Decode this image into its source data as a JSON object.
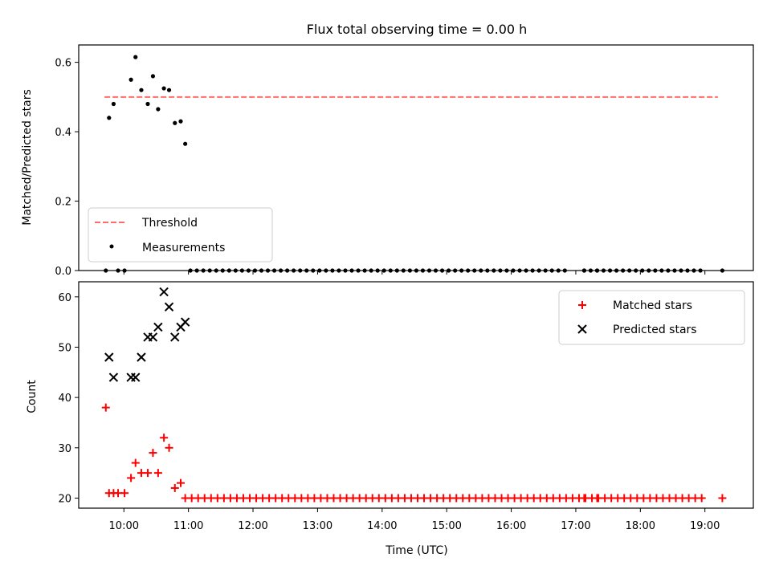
{
  "chart_data": [
    {
      "type": "scatter",
      "title": "Flux total observing time = 0.00 h",
      "xlabel": "",
      "ylabel": "Matched/Predicted stars",
      "ylim": [
        0.0,
        0.65
      ],
      "yticks": [
        0.0,
        0.2,
        0.4,
        0.6
      ],
      "yticklabels": [
        "0.0",
        "0.2",
        "0.4",
        "0.6"
      ],
      "xlim": [
        9.3,
        19.75
      ],
      "legend": "bottom-left",
      "grid": false,
      "threshold": {
        "name": "Threshold",
        "value": 0.5,
        "x": [
          9.7,
          19.2
        ],
        "color": "#ff6b6b",
        "style": "dashed"
      },
      "series": [
        {
          "name": "Measurements",
          "color": "#000000",
          "marker": "dot",
          "x": [
            9.77,
            9.84,
            9.91,
            10.01,
            10.11,
            10.18,
            10.27,
            10.37,
            10.45,
            10.53,
            10.62,
            10.7,
            10.79,
            10.88,
            10.95
          ],
          "y": [
            0.44,
            0.48,
            0.0,
            0.0,
            0.55,
            0.615,
            0.52,
            0.48,
            0.56,
            0.465,
            0.525,
            0.52,
            0.425,
            0.43,
            0.365
          ]
        }
      ],
      "zero_points": {
        "start": 11.03,
        "end": 19.02,
        "step": 0.1,
        "gaps": [
          16.93,
          17.03
        ],
        "extra": [
          9.72,
          17.13,
          17.33,
          19.27
        ]
      }
    },
    {
      "type": "scatter",
      "title": "",
      "xlabel": "Time (UTC)",
      "ylabel": "Count",
      "ylim": [
        18,
        63
      ],
      "yticks": [
        20,
        30,
        40,
        50,
        60
      ],
      "yticklabels": [
        "20",
        "30",
        "40",
        "50",
        "60"
      ],
      "xlim": [
        9.3,
        19.75
      ],
      "xticks": [
        10,
        11,
        12,
        13,
        14,
        15,
        16,
        17,
        18,
        19
      ],
      "xticklabels": [
        "10:00",
        "11:00",
        "12:00",
        "13:00",
        "14:00",
        "15:00",
        "16:00",
        "17:00",
        "18:00",
        "19:00"
      ],
      "legend": "top-right",
      "grid": false,
      "series": [
        {
          "name": "Matched stars",
          "color": "#ff0000",
          "marker": "plus",
          "x": [
            9.72,
            9.77,
            9.84,
            9.91,
            10.01,
            10.11,
            10.18,
            10.27,
            10.37,
            10.45,
            10.53,
            10.62,
            10.7,
            10.79,
            10.88
          ],
          "y": [
            38,
            21,
            21,
            21,
            21,
            24,
            27,
            25,
            25,
            29,
            25,
            32,
            30,
            22,
            23
          ]
        },
        {
          "name": "Predicted stars",
          "color": "#000000",
          "marker": "x",
          "x": [
            9.77,
            9.84,
            10.11,
            10.18,
            10.27,
            10.37,
            10.45,
            10.53,
            10.62,
            10.7,
            10.79,
            10.88,
            10.95
          ],
          "y": [
            48,
            44,
            44,
            44,
            48,
            52,
            52,
            54,
            61,
            58,
            52,
            54,
            55
          ]
        }
      ],
      "matched_baseline": {
        "value": 20,
        "start": 10.95,
        "end": 19.02,
        "step": 0.1,
        "gaps": [
          16.93,
          17.03
        ],
        "extra": [
          17.13,
          17.33,
          19.27
        ]
      }
    }
  ]
}
